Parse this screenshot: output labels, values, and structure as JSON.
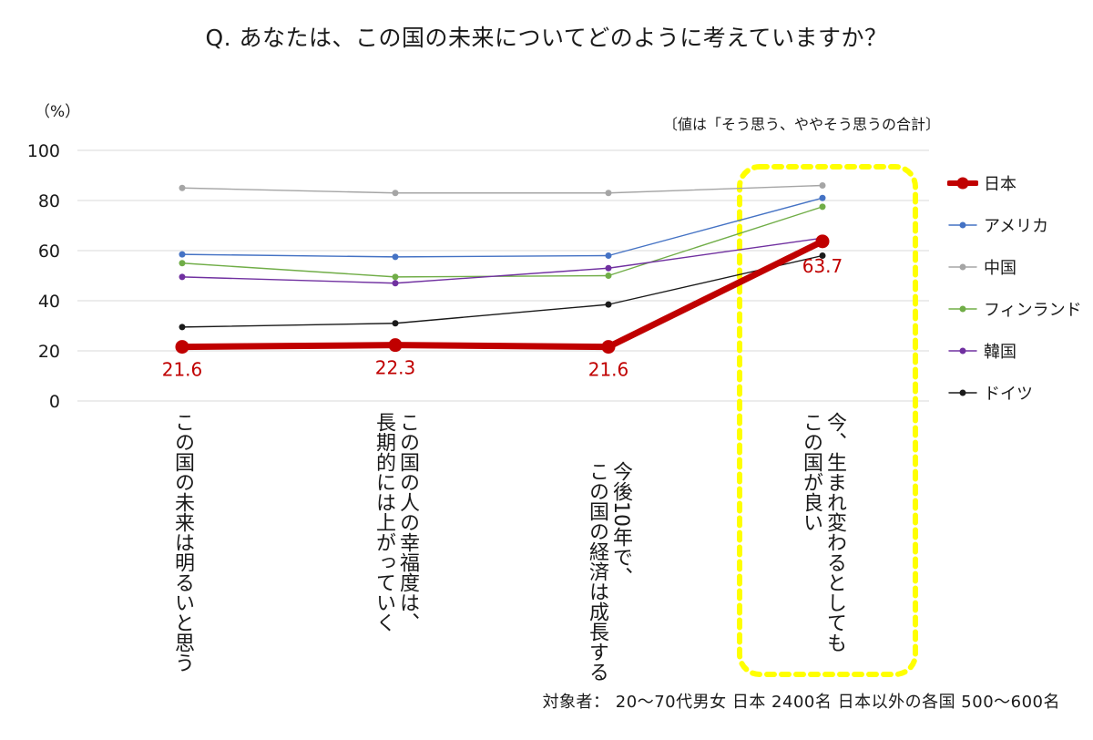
{
  "chart_data": {
    "type": "line",
    "title": "Q. あなたは、この国の未来についてどのように考えていますか？",
    "ylabel": "（%）",
    "note": "〔値は「そう思う、ややそう思うの合計〕",
    "footer": "対象者：  20～70代男女   日本   2400名  日本以外の各国   500～600名",
    "ylim": [
      0,
      100
    ],
    "yticks": [
      "0",
      "20",
      "40",
      "60",
      "80",
      "100"
    ],
    "grid": true,
    "legend_position": "right",
    "highlight_category_index": 3,
    "categories": [
      "この国の未来は明るいと思う",
      "この国の人の幸福度は、\n長期的には上がっていく",
      "今後10年で、\nこの国の経済は成長する",
      "今、生まれ変わるとしても\nこの国が良い"
    ],
    "series": [
      {
        "name": "日本",
        "color": "#c00000",
        "values": [
          21.6,
          22.3,
          21.6,
          63.7
        ],
        "labels": [
          "21.6",
          "22.3",
          "21.6",
          "63.7"
        ],
        "emphasis": true
      },
      {
        "name": "アメリカ",
        "color": "#4472c4",
        "values": [
          58.5,
          57.5,
          58.0,
          81.0
        ]
      },
      {
        "name": "中国",
        "color": "#a5a5a5",
        "values": [
          85.0,
          83.0,
          83.0,
          86.0
        ]
      },
      {
        "name": "フィンランド",
        "color": "#70ad47",
        "values": [
          55.0,
          49.5,
          50.0,
          77.5
        ]
      },
      {
        "name": "韓国",
        "color": "#7030a0",
        "values": [
          49.5,
          47.0,
          53.0,
          65.0
        ]
      },
      {
        "name": "ドイツ",
        "color": "#1a1a1a",
        "values": [
          29.5,
          31.0,
          38.5,
          58.0
        ]
      }
    ],
    "highlight_color": "#ffff00"
  }
}
